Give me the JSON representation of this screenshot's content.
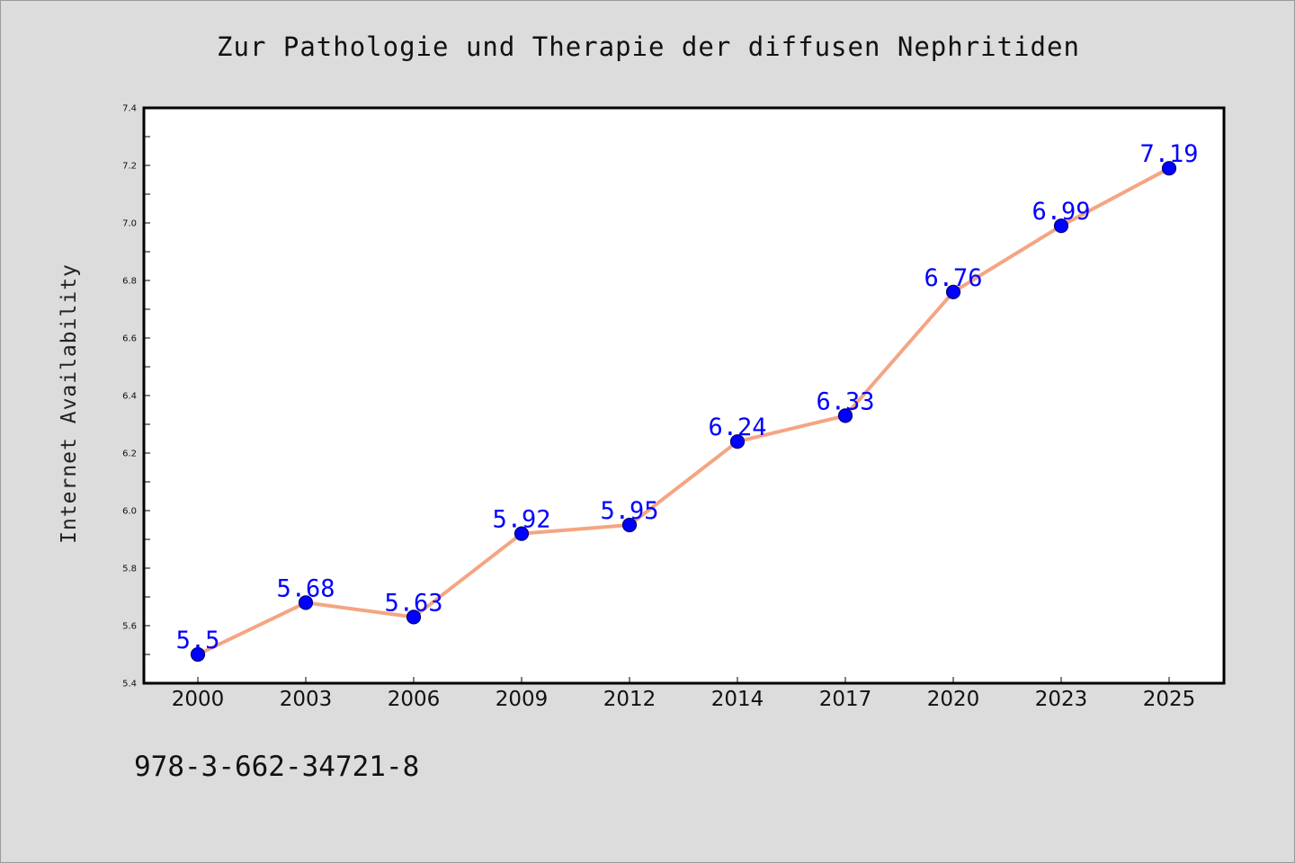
{
  "chart_data": {
    "type": "line",
    "title": "Zur Pathologie und Therapie der diffusen Nephritiden",
    "xlabel": "",
    "ylabel": "Internet Availability",
    "categories": [
      "2000",
      "2003",
      "2006",
      "2009",
      "2012",
      "2014",
      "2017",
      "2020",
      "2023",
      "2025"
    ],
    "series": [
      {
        "values": [
          5.5,
          5.68,
          5.63,
          5.92,
          5.95,
          6.24,
          6.33,
          6.76,
          6.99,
          7.19
        ],
        "labels": [
          "5.5",
          "5.68",
          "5.63",
          "5.92",
          "5.95",
          "6.24",
          "6.33",
          "6.76",
          "6.99",
          "7.19"
        ],
        "line_color": "#f4a582",
        "marker_color": "#0000ff"
      }
    ],
    "ylim": [
      5.4,
      7.4
    ],
    "yticks": [
      "5.4",
      "5.6",
      "5.8",
      "6.0",
      "6.2",
      "6.4",
      "6.6",
      "6.8",
      "7.0",
      "7.2",
      "7.4"
    ],
    "grid": false,
    "legend": "none",
    "data_label_color": "#0000ff"
  },
  "footer": {
    "isbn": "978-3-662-34721-8"
  }
}
